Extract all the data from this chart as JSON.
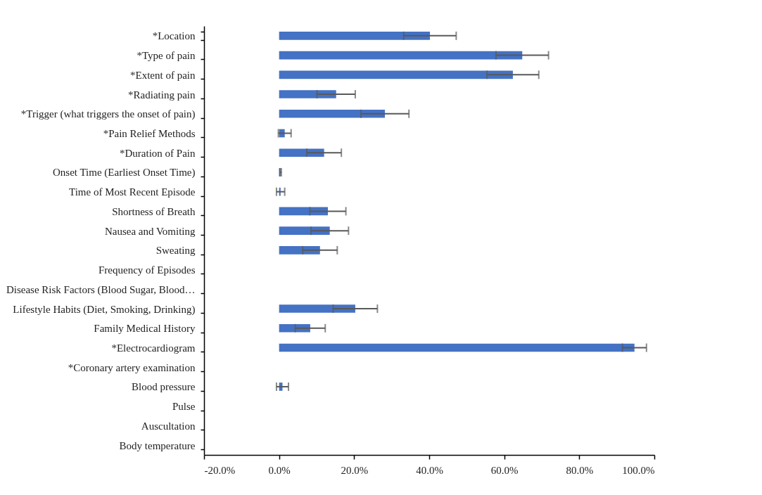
{
  "chart_data": {
    "type": "bar",
    "orientation": "horizontal",
    "color": "#4472c4",
    "categories": [
      "*Location",
      "*Type of pain",
      "*Extent of pain",
      "*Radiating pain",
      "*Trigger (what triggers the onset of pain)",
      "*Pain Relief Methods",
      "*Duration of Pain",
      "Onset Time (Earliest Onset Time)",
      "Time of Most Recent Episode",
      "Shortness of Breath",
      "Nausea and Vomiting",
      "Sweating",
      "Frequency of Episodes",
      "Disease Risk Factors (Blood Sugar, Blood…",
      "Lifestyle Habits (Diet, Smoking, Drinking)",
      "Family Medical History",
      "*Electrocardiogram",
      "*Coronary artery examination",
      "Blood pressure",
      "Pulse",
      "Auscultation",
      "Body temperature"
    ],
    "values": [
      40.2,
      64.8,
      62.3,
      15.2,
      28.2,
      1.5,
      12.0,
      0.4,
      0.4,
      13.0,
      13.5,
      10.9,
      0,
      0,
      20.3,
      8.3,
      94.7,
      0,
      0.9,
      0,
      0,
      0
    ],
    "errors": [
      7.0,
      7.0,
      6.9,
      5.1,
      6.4,
      1.7,
      4.6,
      0.2,
      1.1,
      4.8,
      5.0,
      4.6,
      null,
      null,
      5.9,
      4.0,
      3.2,
      null,
      1.6,
      null,
      null,
      null
    ],
    "xlim": [
      -20,
      100
    ],
    "xticks": [
      {
        "value": -20,
        "label": "-20.0%"
      },
      {
        "value": 0,
        "label": "0.0%"
      },
      {
        "value": 20,
        "label": "20.0%"
      },
      {
        "value": 40,
        "label": "40.0%"
      },
      {
        "value": 60,
        "label": "60.0%"
      },
      {
        "value": 80,
        "label": "80.0%"
      },
      {
        "value": 100,
        "label": "100.0%"
      }
    ],
    "grid": false
  }
}
